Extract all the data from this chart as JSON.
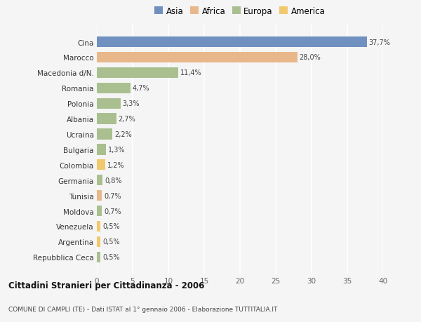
{
  "categories": [
    "Repubblica Ceca",
    "Argentina",
    "Venezuela",
    "Moldova",
    "Tunisia",
    "Germania",
    "Colombia",
    "Bulgaria",
    "Ucraina",
    "Albania",
    "Polonia",
    "Romania",
    "Macedonia d/N.",
    "Marocco",
    "Cina"
  ],
  "values": [
    0.5,
    0.5,
    0.5,
    0.7,
    0.7,
    0.8,
    1.2,
    1.3,
    2.2,
    2.7,
    3.3,
    4.7,
    11.4,
    28.0,
    37.7
  ],
  "labels": [
    "0,5%",
    "0,5%",
    "0,5%",
    "0,7%",
    "0,7%",
    "0,8%",
    "1,2%",
    "1,3%",
    "2,2%",
    "2,7%",
    "3,3%",
    "4,7%",
    "11,4%",
    "28,0%",
    "37,7%"
  ],
  "continents": [
    "Europa",
    "America",
    "America",
    "Europa",
    "Africa",
    "Europa",
    "America",
    "Europa",
    "Europa",
    "Europa",
    "Europa",
    "Europa",
    "Europa",
    "Africa",
    "Asia"
  ],
  "colors": {
    "Asia": "#7090c0",
    "Africa": "#e8b88a",
    "Europa": "#aabf90",
    "America": "#f0c96e"
  },
  "legend_order": [
    "Asia",
    "Africa",
    "Europa",
    "America"
  ],
  "title": "Cittadini Stranieri per Cittadinanza - 2006",
  "subtitle": "COMUNE DI CAMPLI (TE) - Dati ISTAT al 1° gennaio 2006 - Elaborazione TUTTITALIA.IT",
  "xlim": [
    0,
    40
  ],
  "xticks": [
    0,
    5,
    10,
    15,
    20,
    25,
    30,
    35,
    40
  ],
  "background_color": "#f5f5f5",
  "grid_color": "#ffffff",
  "bar_height": 0.7
}
